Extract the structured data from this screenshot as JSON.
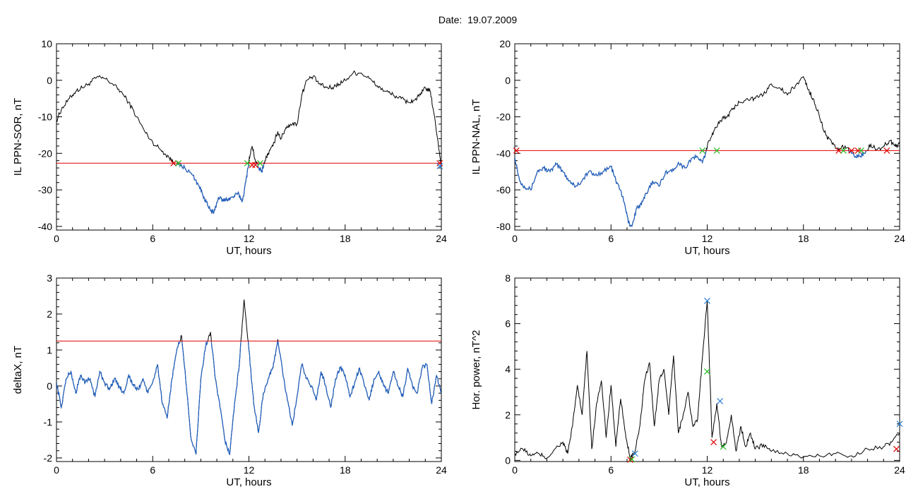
{
  "header": {
    "date_label": "Date:",
    "date_value": "19.07.2009"
  },
  "colors": {
    "data_line": "#000000",
    "below_threshold": "#1f5fbf",
    "threshold": "#e00000",
    "marker_red": "#e00000",
    "marker_green": "#22bb22",
    "marker_blue": "#2a7fd4"
  },
  "chart_data": [
    {
      "id": "il-sor",
      "type": "line",
      "xlabel": "UT, hours",
      "ylabel": "IL PPN-SOR, nT",
      "xlim": [
        0,
        24
      ],
      "ylim": [
        -41,
        10
      ],
      "xticks": [
        0,
        6,
        12,
        18,
        24
      ],
      "yticks": [
        -40,
        -30,
        -20,
        -10,
        0,
        10
      ],
      "threshold": -22.7,
      "series": [
        {
          "x": [
            0,
            0.3,
            0.8,
            1.2,
            1.6,
            2.0,
            2.5,
            3.0,
            3.5,
            4.0,
            4.5,
            5.0,
            5.5,
            6.0,
            6.5,
            7.0,
            7.3,
            7.6,
            8.0,
            8.5,
            8.9,
            9.2,
            9.5,
            9.8,
            10.1,
            10.4,
            10.7,
            11.0,
            11.3,
            11.6,
            11.8,
            12.0,
            12.2,
            12.4,
            12.6,
            12.8,
            13.0,
            13.2,
            13.5,
            13.8,
            14.0,
            14.3,
            14.6,
            15.0,
            15.3,
            15.6,
            16.0,
            16.4,
            16.8,
            17.2,
            17.6,
            18.0,
            18.5,
            19.0,
            19.5,
            20.0,
            20.5,
            21.0,
            21.5,
            21.9,
            22.3,
            22.7,
            23.0,
            23.3,
            23.5,
            23.8,
            24.0
          ],
          "y": [
            -11,
            -8,
            -5,
            -3,
            -2,
            -1,
            0.8,
            0.5,
            -1,
            -3,
            -6,
            -10,
            -14,
            -17,
            -19,
            -21,
            -22.5,
            -23,
            -24,
            -26,
            -29,
            -32,
            -35,
            -36.5,
            -32,
            -33,
            -32.5,
            -32,
            -31,
            -33,
            -28,
            -22,
            -18,
            -22,
            -24,
            -25,
            -22,
            -20,
            -18,
            -14,
            -16,
            -13,
            -12,
            -12,
            -4,
            0,
            1,
            -1,
            -2,
            -2,
            -1,
            0,
            2,
            2,
            0.5,
            -1.5,
            -3,
            -4,
            -5,
            -6,
            -5.5,
            -4,
            -2,
            -3,
            -8,
            -17,
            -24
          ]
        }
      ],
      "markers": [
        {
          "x": 7.3,
          "y": -22.7,
          "color": "red"
        },
        {
          "x": 7.6,
          "y": -22.7,
          "color": "green"
        },
        {
          "x": 11.9,
          "y": -22.7,
          "color": "green"
        },
        {
          "x": 12.2,
          "y": -23.2,
          "color": "red"
        },
        {
          "x": 12.4,
          "y": -23.2,
          "color": "red"
        },
        {
          "x": 12.7,
          "y": -22.7,
          "color": "green"
        },
        {
          "x": 23.9,
          "y": -22.7,
          "color": "red"
        },
        {
          "x": 23.9,
          "y": -23.5,
          "color": "blue"
        }
      ]
    },
    {
      "id": "il-nal",
      "type": "line",
      "xlabel": "UT, hours",
      "ylabel": "IL PPN-NAL, nT",
      "xlim": [
        0,
        24
      ],
      "ylim": [
        -82,
        20
      ],
      "xticks": [
        0,
        6,
        12,
        18,
        24
      ],
      "yticks": [
        -80,
        -60,
        -40,
        -20,
        0,
        20
      ],
      "threshold": -38.5,
      "series": [
        {
          "x": [
            0,
            0.3,
            0.6,
            1.0,
            1.4,
            1.8,
            2.2,
            2.6,
            3.0,
            3.4,
            3.8,
            4.2,
            4.6,
            5.0,
            5.5,
            6.0,
            6.3,
            6.6,
            6.9,
            7.1,
            7.3,
            7.6,
            7.9,
            8.2,
            8.6,
            9.0,
            9.4,
            9.8,
            10.2,
            10.6,
            11.0,
            11.4,
            11.7,
            11.9,
            12.1,
            12.4,
            12.8,
            13.2,
            13.6,
            14.0,
            14.5,
            15.0,
            15.5,
            16.0,
            16.5,
            17.0,
            17.5,
            18.0,
            18.3,
            18.6,
            19.0,
            19.4,
            19.8,
            20.2,
            20.6,
            21.0,
            21.4,
            21.8,
            22.2,
            22.6,
            23.0,
            23.4,
            23.7,
            24.0
          ],
          "y": [
            -42,
            -55,
            -58,
            -60,
            -50,
            -48,
            -50,
            -46,
            -50,
            -55,
            -58,
            -55,
            -50,
            -52,
            -50,
            -47,
            -55,
            -60,
            -70,
            -78,
            -80,
            -70,
            -68,
            -62,
            -55,
            -58,
            -50,
            -50,
            -45,
            -48,
            -43,
            -42,
            -45,
            -40,
            -33,
            -28,
            -22,
            -20,
            -16,
            -12,
            -10,
            -10,
            -8,
            -2,
            -4,
            -8,
            -3,
            2,
            -5,
            -10,
            -20,
            -30,
            -35,
            -38,
            -36,
            -40,
            -42,
            -40,
            -35,
            -38,
            -36,
            -33,
            -36,
            -35
          ]
        }
      ],
      "markers": [
        {
          "x": 0.1,
          "y": -38.5,
          "color": "red"
        },
        {
          "x": 11.7,
          "y": -38.5,
          "color": "green"
        },
        {
          "x": 12.6,
          "y": -38.5,
          "color": "green"
        },
        {
          "x": 20.2,
          "y": -38.5,
          "color": "red"
        },
        {
          "x": 20.5,
          "y": -38.5,
          "color": "green"
        },
        {
          "x": 21.0,
          "y": -38.5,
          "color": "red"
        },
        {
          "x": 21.4,
          "y": -38.5,
          "color": "red"
        },
        {
          "x": 21.6,
          "y": -38.5,
          "color": "green"
        },
        {
          "x": 23.2,
          "y": -38.5,
          "color": "red"
        }
      ]
    },
    {
      "id": "delta-x",
      "type": "line",
      "xlabel": "UT, hours",
      "ylabel": "deltaX, nT",
      "xlim": [
        0,
        24
      ],
      "ylim": [
        -2.1,
        3
      ],
      "xticks": [
        0,
        6,
        12,
        18,
        24
      ],
      "yticks": [
        -2,
        -1,
        0,
        1,
        2,
        3
      ],
      "threshold": 1.25,
      "series": [
        {
          "x": [
            0,
            0.3,
            0.6,
            0.9,
            1.2,
            1.5,
            1.8,
            2.1,
            2.4,
            2.7,
            3.0,
            3.3,
            3.6,
            3.9,
            4.2,
            4.5,
            4.8,
            5.1,
            5.4,
            5.7,
            6.0,
            6.3,
            6.6,
            6.9,
            7.2,
            7.5,
            7.8,
            8.1,
            8.4,
            8.7,
            9.0,
            9.3,
            9.6,
            9.9,
            10.2,
            10.5,
            10.8,
            11.1,
            11.4,
            11.7,
            12.0,
            12.3,
            12.6,
            12.9,
            13.2,
            13.5,
            13.8,
            14.1,
            14.4,
            14.7,
            15.0,
            15.3,
            15.6,
            15.9,
            16.2,
            16.5,
            16.8,
            17.1,
            17.4,
            17.7,
            18.0,
            18.3,
            18.6,
            18.9,
            19.2,
            19.5,
            19.8,
            20.1,
            20.4,
            20.7,
            21.0,
            21.3,
            21.6,
            21.9,
            22.2,
            22.5,
            22.8,
            23.1,
            23.4,
            23.7,
            24.0
          ],
          "y": [
            0.1,
            -0.6,
            0.2,
            0.4,
            -0.2,
            0.3,
            0.1,
            0.2,
            -0.3,
            0.4,
            0.1,
            -0.1,
            0.2,
            0.0,
            -0.2,
            0.3,
            0.0,
            -0.1,
            0.2,
            -0.2,
            0.1,
            0.6,
            -0.5,
            -0.9,
            0.2,
            1.0,
            1.4,
            0.0,
            -1.5,
            -1.9,
            0.2,
            1.1,
            1.5,
            0.2,
            -0.6,
            -1.5,
            -1.9,
            -0.5,
            0.6,
            2.4,
            1.0,
            -0.5,
            -1.3,
            -0.2,
            0.2,
            0.5,
            1.3,
            0.4,
            -0.4,
            -1.1,
            -0.3,
            0.6,
            0.2,
            0.0,
            -0.4,
            0.4,
            0.0,
            -0.6,
            0.2,
            0.5,
            0.3,
            -0.3,
            0.1,
            0.5,
            0.0,
            -0.4,
            0.2,
            0.4,
            0.0,
            -0.2,
            0.4,
            0.0,
            -0.3,
            0.5,
            0.0,
            -0.2,
            0.5,
            0.6,
            -0.5,
            0.3,
            -0.2
          ]
        }
      ],
      "markers": []
    },
    {
      "id": "hor-power",
      "type": "line",
      "xlabel": "UT, hours",
      "ylabel": "Hor. power, nT^2",
      "xlim": [
        0,
        24
      ],
      "ylim": [
        -0.05,
        8
      ],
      "xticks": [
        0,
        6,
        12,
        18,
        24
      ],
      "yticks": [
        0,
        2,
        4,
        6,
        8
      ],
      "series": [
        {
          "x": [
            0,
            0.5,
            1.0,
            1.5,
            2.0,
            2.5,
            3.0,
            3.3,
            3.6,
            3.9,
            4.2,
            4.5,
            4.8,
            5.1,
            5.4,
            5.7,
            6.0,
            6.3,
            6.6,
            6.9,
            7.2,
            7.5,
            7.8,
            8.1,
            8.4,
            8.7,
            9.0,
            9.3,
            9.6,
            9.9,
            10.2,
            10.5,
            10.8,
            11.1,
            11.4,
            11.7,
            12.0,
            12.3,
            12.6,
            12.9,
            13.2,
            13.5,
            13.8,
            14.1,
            14.4,
            14.7,
            15.0,
            15.5,
            16.0,
            17.0,
            18.0,
            19.0,
            20.0,
            21.0,
            22.0,
            23.0,
            23.5,
            24.0
          ],
          "y": [
            0.3,
            0.5,
            0.2,
            0.3,
            0.1,
            0.5,
            0.8,
            0.3,
            1.5,
            3.3,
            2.0,
            4.8,
            0.5,
            2.5,
            3.5,
            1.0,
            3.3,
            0.6,
            2.7,
            1.2,
            0.05,
            0.4,
            1.5,
            3.5,
            4.3,
            1.5,
            3.5,
            4.0,
            2.0,
            4.6,
            1.2,
            2.0,
            3.0,
            1.5,
            1.8,
            4.5,
            7.0,
            1.0,
            2.5,
            0.6,
            0.8,
            2.0,
            0.4,
            1.5,
            0.6,
            1.2,
            0.5,
            0.7,
            0.4,
            0.3,
            0.15,
            0.2,
            0.3,
            0.2,
            0.5,
            0.6,
            0.8,
            1.2
          ]
        }
      ],
      "markers": [
        {
          "x": 7.2,
          "y": 0.03,
          "color": "red"
        },
        {
          "x": 7.5,
          "y": 0.3,
          "color": "blue"
        },
        {
          "x": 7.3,
          "y": 0.05,
          "color": "green"
        },
        {
          "x": 12.0,
          "y": 7.0,
          "color": "blue"
        },
        {
          "x": 12.0,
          "y": 3.9,
          "color": "green"
        },
        {
          "x": 12.4,
          "y": 0.8,
          "color": "red"
        },
        {
          "x": 12.8,
          "y": 2.6,
          "color": "blue"
        },
        {
          "x": 13.0,
          "y": 0.6,
          "color": "green"
        },
        {
          "x": 23.8,
          "y": 0.5,
          "color": "red"
        },
        {
          "x": 24.0,
          "y": 1.6,
          "color": "blue"
        }
      ]
    }
  ]
}
